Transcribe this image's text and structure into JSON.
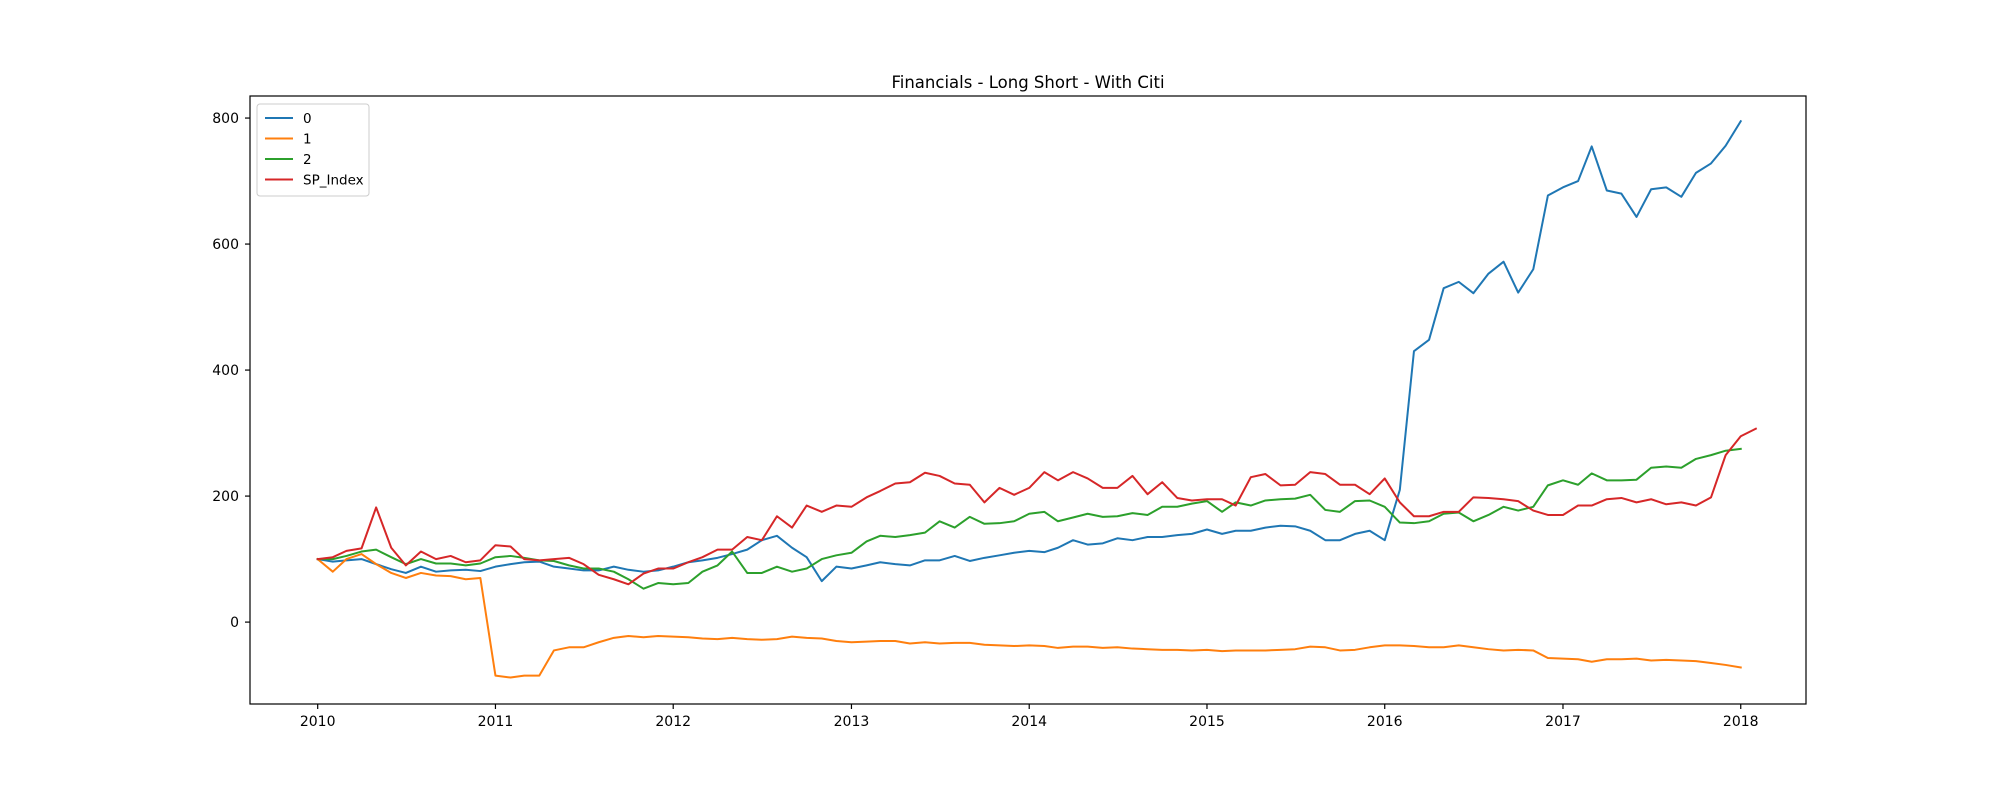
{
  "chart_data": {
    "type": "line",
    "title": "Financials  - Long Short - With Citi",
    "xlabel": "",
    "ylabel": "",
    "xlim": [
      "2009-08-15",
      "2018-05-15"
    ],
    "ylim": [
      -130,
      835
    ],
    "xticks": [
      {
        "label": "2010",
        "date": "2010-01-01"
      },
      {
        "label": "2011",
        "date": "2011-01-01"
      },
      {
        "label": "2012",
        "date": "2012-01-01"
      },
      {
        "label": "2013",
        "date": "2013-01-01"
      },
      {
        "label": "2014",
        "date": "2014-01-01"
      },
      {
        "label": "2015",
        "date": "2015-01-01"
      },
      {
        "label": "2016",
        "date": "2016-01-01"
      },
      {
        "label": "2017",
        "date": "2017-01-01"
      },
      {
        "label": "2018",
        "date": "2018-01-01"
      }
    ],
    "yticks": [
      0,
      200,
      400,
      600,
      800
    ],
    "grid": false,
    "legend_position": "top-left",
    "x_start": "2010-01",
    "x_frequency": "monthly",
    "series": [
      {
        "name": "0",
        "color": "#1f77b4",
        "values": [
          100,
          96,
          98,
          100,
          92,
          84,
          78,
          88,
          80,
          82,
          83,
          81,
          88,
          92,
          95,
          96,
          88,
          85,
          82,
          82,
          88,
          83,
          80,
          82,
          88,
          95,
          98,
          102,
          108,
          115,
          130,
          137,
          118,
          103,
          65,
          88,
          85,
          90,
          95,
          92,
          90,
          98,
          98,
          105,
          97,
          102,
          106,
          110,
          113,
          111,
          118,
          130,
          123,
          125,
          133,
          130,
          135,
          135,
          138,
          140,
          147,
          140,
          145,
          145,
          150,
          153,
          152,
          145,
          130,
          130,
          140,
          145,
          130,
          210,
          430,
          448,
          530,
          540,
          522,
          553,
          572,
          523,
          560,
          677,
          690,
          700,
          755,
          685,
          680,
          643,
          687,
          690,
          675,
          713,
          728,
          756,
          795
        ]
      },
      {
        "name": "1",
        "color": "#ff7f0e",
        "values": [
          100,
          80,
          100,
          108,
          92,
          78,
          70,
          78,
          74,
          73,
          68,
          70,
          -85,
          -88,
          -85,
          -85,
          -45,
          -40,
          -40,
          -32,
          -25,
          -22,
          -24,
          -22,
          -23,
          -24,
          -26,
          -27,
          -25,
          -27,
          -28,
          -27,
          -23,
          -25,
          -26,
          -30,
          -32,
          -31,
          -30,
          -30,
          -34,
          -32,
          -34,
          -33,
          -33,
          -36,
          -37,
          -38,
          -37,
          -38,
          -41,
          -39,
          -39,
          -41,
          -40,
          -42,
          -43,
          -44,
          -44,
          -45,
          -44,
          -46,
          -45,
          -45,
          -45,
          -44,
          -43,
          -39,
          -40,
          -45,
          -44,
          -40,
          -37,
          -37,
          -38,
          -40,
          -40,
          -37,
          -40,
          -43,
          -45,
          -44,
          -45,
          -57,
          -58,
          -59,
          -63,
          -59,
          -59,
          -58,
          -61,
          -60,
          -61,
          -62,
          -65,
          -68,
          -72
        ]
      },
      {
        "name": "2",
        "color": "#2ca02c",
        "values": [
          100,
          100,
          105,
          112,
          115,
          103,
          92,
          100,
          93,
          93,
          90,
          93,
          103,
          105,
          102,
          98,
          97,
          90,
          85,
          85,
          80,
          68,
          53,
          62,
          60,
          62,
          80,
          90,
          112,
          78,
          78,
          88,
          80,
          85,
          100,
          106,
          110,
          128,
          137,
          135,
          138,
          142,
          160,
          150,
          167,
          156,
          157,
          160,
          172,
          175,
          160,
          166,
          172,
          167,
          168,
          173,
          170,
          183,
          183,
          188,
          192,
          175,
          190,
          185,
          193,
          195,
          196,
          202,
          178,
          175,
          192,
          193,
          183,
          158,
          157,
          160,
          172,
          174,
          160,
          170,
          183,
          177,
          183,
          217,
          225,
          218,
          236,
          225,
          225,
          226,
          245,
          247,
          245,
          259,
          265,
          272,
          275
        ]
      },
      {
        "name": "SP_Index",
        "color": "#d62728",
        "values": [
          100,
          103,
          113,
          117,
          182,
          118,
          90,
          112,
          100,
          105,
          95,
          98,
          122,
          120,
          100,
          98,
          100,
          102,
          92,
          75,
          68,
          60,
          77,
          85,
          85,
          95,
          103,
          115,
          115,
          135,
          130,
          168,
          150,
          185,
          175,
          185,
          183,
          198,
          208,
          220,
          222,
          237,
          232,
          220,
          218,
          190,
          213,
          202,
          213,
          238,
          225,
          238,
          228,
          213,
          213,
          232,
          203,
          222,
          197,
          193,
          195,
          195,
          185,
          230,
          235,
          217,
          218,
          238,
          235,
          218,
          218,
          203,
          228,
          190,
          168,
          168,
          175,
          175,
          198,
          197,
          195,
          192,
          177,
          170,
          170,
          185,
          185,
          195,
          197,
          190,
          195,
          187,
          190,
          185,
          198,
          265,
          295,
          307
        ]
      }
    ]
  }
}
